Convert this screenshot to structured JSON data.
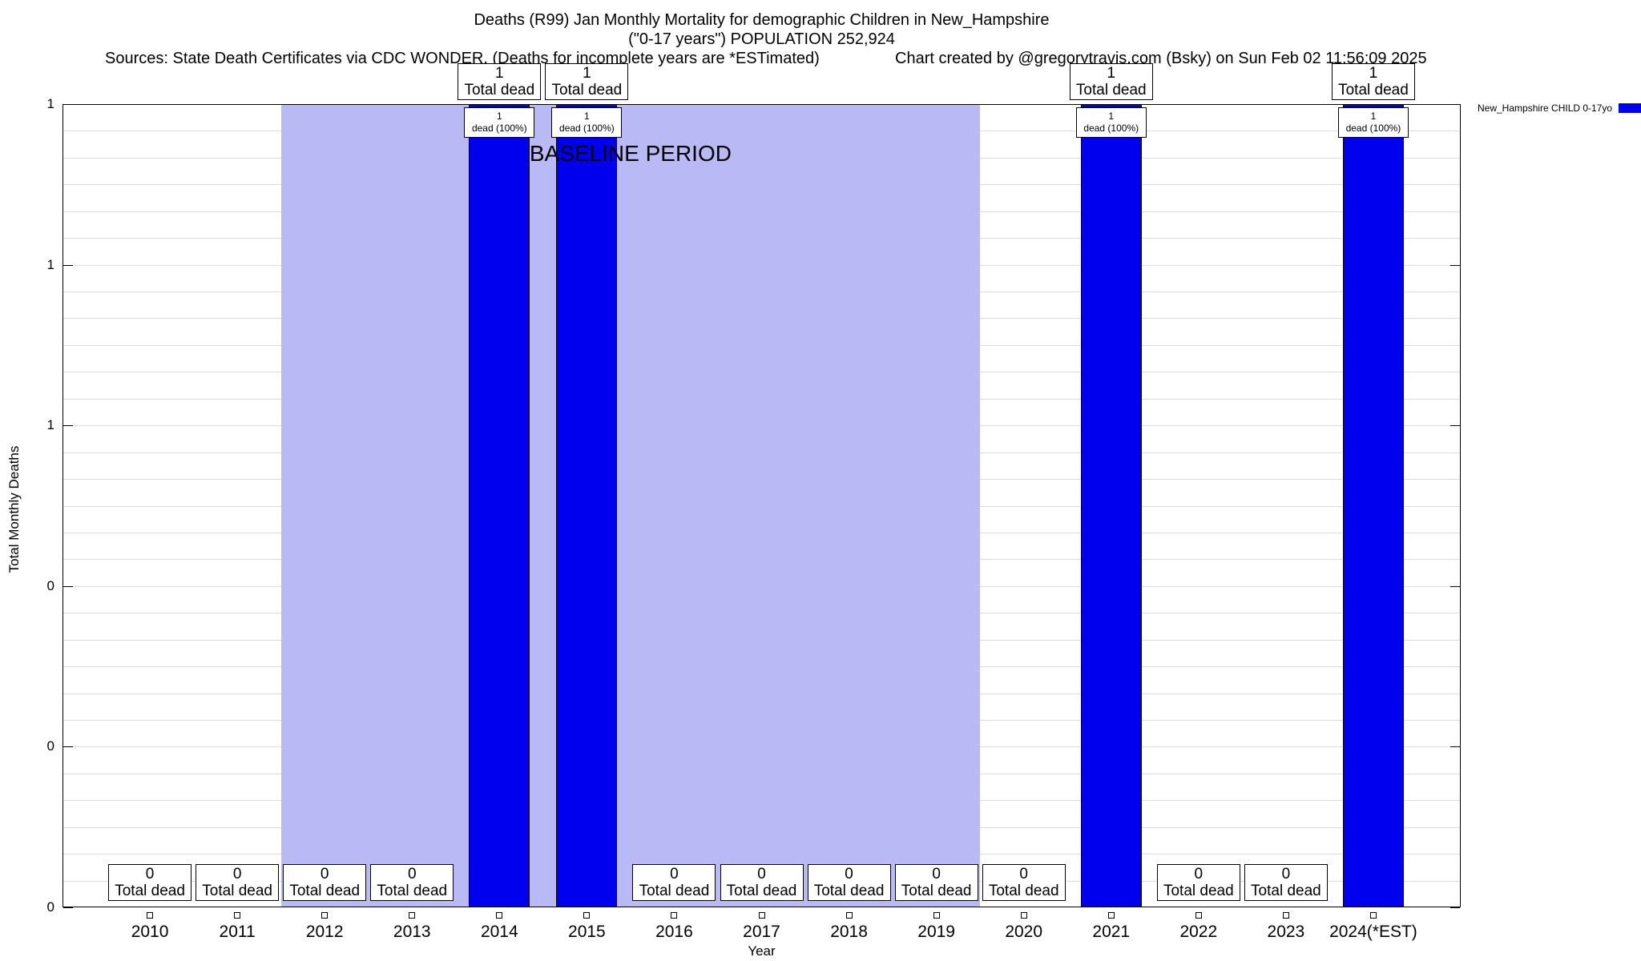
{
  "header": {
    "title_line1": "Deaths (R99) Jan Monthly Mortality for demographic Children in New_Hampshire",
    "title_line2": "(\"0-17 years\") POPULATION 252,924",
    "sources": "Sources: State Death Certificates via CDC WONDER. (Deaths for incomplete years are *ESTimated)",
    "credit": "Chart created by @gregorytravis.com (Bsky) on Sun Feb 02 11:56:09 2025"
  },
  "legend": {
    "label": "New_Hampshire CHILD 0-17yo",
    "swatch_color": "#0000ee"
  },
  "axes": {
    "xlabel": "Year",
    "ylabel": "Total Monthly Deaths",
    "ytick_labels": [
      "1",
      "1",
      "1",
      "0",
      "0",
      "0"
    ]
  },
  "baseline_region": {
    "label": "BASELINE PERIOD",
    "start_category": "2012",
    "end_category": "2019",
    "color": "#b9b9f6"
  },
  "chart_data": {
    "type": "bar",
    "title": "Deaths (R99) Jan Monthly Mortality for demographic Children in New_Hampshire",
    "xlabel": "Year",
    "ylabel": "Total Monthly Deaths",
    "ylim": [
      0,
      1
    ],
    "grid": true,
    "legend_position": "top-right",
    "categories": [
      "2010",
      "2011",
      "2012",
      "2013",
      "2014",
      "2015",
      "2016",
      "2017",
      "2018",
      "2019",
      "2020",
      "2021",
      "2022",
      "2023",
      "2024(*EST)"
    ],
    "values": [
      0,
      0,
      0,
      0,
      1,
      1,
      0,
      0,
      0,
      0,
      0,
      1,
      0,
      0,
      1
    ],
    "bar_color": "#0000ee",
    "annotations": {
      "nonzero_top_line2": "Total dead",
      "nonzero_inner_line2": "dead (100%)",
      "zero_line2": "Total dead"
    }
  }
}
